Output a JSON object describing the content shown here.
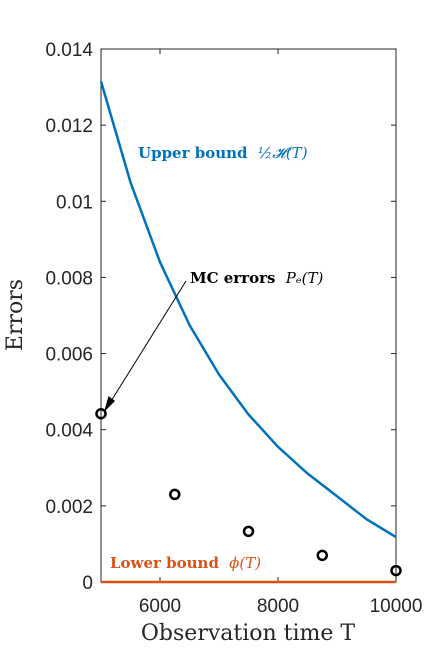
{
  "chart_data": {
    "type": "line",
    "title": "",
    "xlabel": "Observation time T",
    "ylabel": "Errors",
    "xlim": [
      5000,
      10000
    ],
    "ylim": [
      0,
      0.014
    ],
    "xticks": [
      6000,
      8000,
      10000
    ],
    "xtick_labels": [
      "6000",
      "8000",
      "10000"
    ],
    "yticks": [
      0,
      0.002,
      0.004,
      0.006,
      0.008,
      0.01,
      0.012,
      0.014
    ],
    "ytick_labels": [
      "0",
      "0.002",
      "0.004",
      "0.006",
      "0.008",
      "0.01",
      "0.012",
      "0.014"
    ],
    "grid": false,
    "box": true,
    "series": [
      {
        "kind": "line",
        "color": "#0072BD",
        "x": [
          5000,
          5500,
          6000,
          6500,
          7000,
          7500,
          8000,
          8500,
          9000,
          9500,
          10000
        ],
        "y": [
          0.01315,
          0.0105,
          0.0084,
          0.00675,
          0.00545,
          0.0044,
          0.00355,
          0.00285,
          0.00225,
          0.00165,
          0.00118
        ]
      },
      {
        "kind": "line",
        "color": "#D95319",
        "x": [
          5000,
          10000
        ],
        "y": [
          0.0,
          0.0
        ]
      },
      {
        "kind": "scatter",
        "color": "#000000",
        "x": [
          5000,
          6250,
          7500,
          8750,
          10000
        ],
        "y": [
          0.00442,
          0.0023,
          0.00133,
          0.0007,
          0.0003
        ]
      }
    ],
    "annotations": {
      "upper": {
        "bold": "Upper bound",
        "math": "½𝓗(T)",
        "color": "#0072BD"
      },
      "lower": {
        "bold": "Lower bound",
        "math": "ϕ(T)",
        "color": "#D95319"
      },
      "mc": {
        "bold": "MC errors",
        "math": "Pₑ(T)",
        "color": "#000000"
      }
    }
  }
}
